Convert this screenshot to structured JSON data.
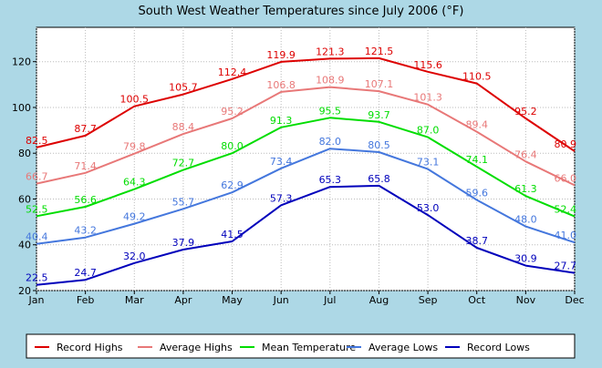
{
  "chart_data": {
    "type": "line",
    "title": "South West Weather Temperatures since July 2006 (°F)",
    "xlabel": "",
    "ylabel": "",
    "categories": [
      "Jan",
      "Feb",
      "Mar",
      "Apr",
      "May",
      "Jun",
      "Jul",
      "Aug",
      "Sep",
      "Oct",
      "Nov",
      "Dec"
    ],
    "ylim": [
      20,
      135
    ],
    "yticks": [
      20,
      40,
      60,
      80,
      100,
      120
    ],
    "grid": true,
    "legend_position": "bottom",
    "series": [
      {
        "name": "Record Highs",
        "color": "#dd0000",
        "values": [
          82.5,
          87.7,
          100.5,
          105.7,
          112.4,
          119.9,
          121.3,
          121.5,
          115.6,
          110.5,
          95.2,
          80.9
        ]
      },
      {
        "name": "Average Highs",
        "color": "#e87878",
        "values": [
          66.7,
          71.4,
          79.8,
          88.4,
          95.2,
          106.8,
          108.9,
          107.1,
          101.3,
          89.4,
          76.4,
          66.0
        ]
      },
      {
        "name": "Mean Temperature",
        "color": "#00dd00",
        "values": [
          52.5,
          56.6,
          64.3,
          72.7,
          80.0,
          91.3,
          95.5,
          93.7,
          87.0,
          74.1,
          61.3,
          52.4
        ]
      },
      {
        "name": "Average Lows",
        "color": "#4477dd",
        "values": [
          40.4,
          43.2,
          49.2,
          55.7,
          62.9,
          73.4,
          82.0,
          80.5,
          73.1,
          59.6,
          48.0,
          41.0
        ]
      },
      {
        "name": "Record Lows",
        "color": "#0000bb",
        "values": [
          22.5,
          24.7,
          32.0,
          37.9,
          41.5,
          57.3,
          65.3,
          65.8,
          53.0,
          38.7,
          30.9,
          27.7
        ]
      }
    ]
  }
}
